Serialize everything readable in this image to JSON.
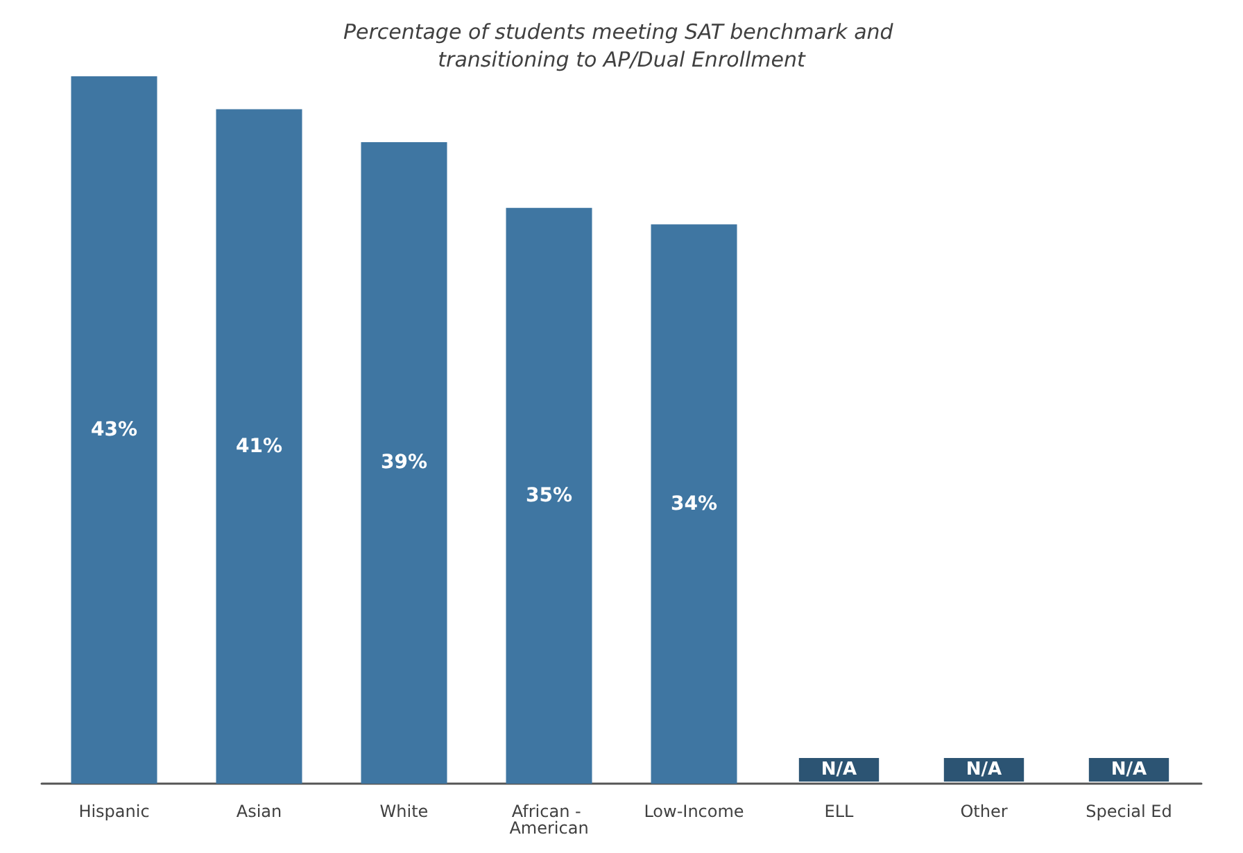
{
  "chart_data": {
    "type": "bar",
    "title": "Percentage of students meeting SAT benchmark and transitioning to AP/Dual Enrollment",
    "categories": [
      "Hispanic",
      "Asian",
      "White",
      "African - American",
      "Low-Income",
      "ELL",
      "Other",
      "Special Ed"
    ],
    "values": [
      43,
      41,
      39,
      35,
      34,
      null,
      null,
      null
    ],
    "value_labels": [
      "43%",
      "41%",
      "39%",
      "35%",
      "34%",
      "N/A",
      "N/A",
      "N/A"
    ],
    "color": "#3f76a2"
  }
}
